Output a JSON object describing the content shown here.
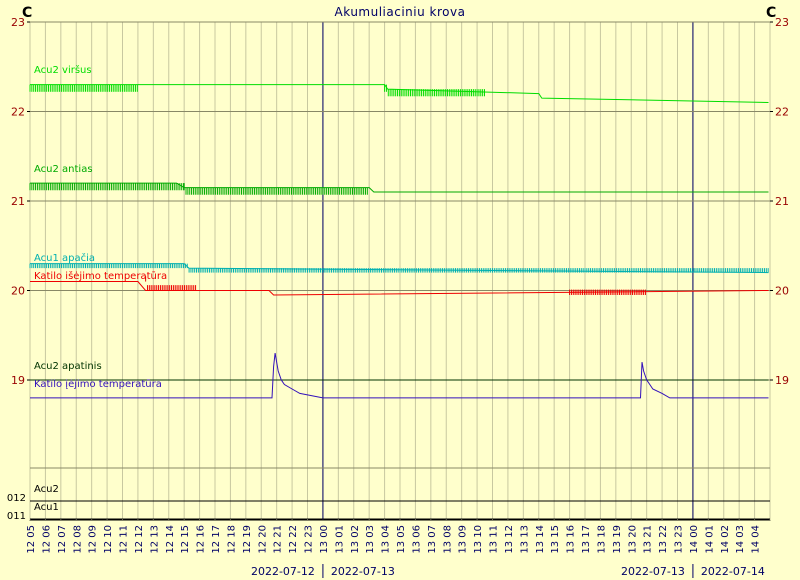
{
  "chart_data": {
    "type": "line",
    "title": "Akumuliaciniu krova",
    "y_unit_left": "C",
    "y_unit_right": "C",
    "ylim": [
      18.2,
      23
    ],
    "y_ticks": [
      "23",
      "22",
      "21",
      "20",
      "19"
    ],
    "grid": true,
    "x_start_hour": 5,
    "x_hours": 48,
    "x_labels": [
      "12 05",
      "12 06",
      "12 07",
      "12 08",
      "12 09",
      "12 10",
      "12 11",
      "12 12",
      "12 13",
      "12 14",
      "12 15",
      "12 16",
      "12 17",
      "12 18",
      "12 19",
      "12 20",
      "12 21",
      "12 22",
      "12 23",
      "13 00",
      "13 01",
      "13 02",
      "13 03",
      "13 04",
      "13 05",
      "13 06",
      "13 07",
      "13 08",
      "13 09",
      "13 10",
      "13 11",
      "13 12",
      "13 13",
      "13 14",
      "13 15",
      "13 16",
      "13 17",
      "13 18",
      "13 19",
      "13 20",
      "13 21",
      "13 22",
      "13 23",
      "14 00",
      "14 01",
      "14 02",
      "14 03",
      "14 04"
    ],
    "date_captions": [
      "2022-07-12",
      "2022-07-13",
      "2022-07-13",
      "2022-07-14"
    ],
    "bottom_ticks": [
      "012",
      "011"
    ],
    "series": [
      {
        "name": "Acu2 viršus",
        "color": "#00dd00",
        "x": [
          0,
          7,
          7.2,
          23,
          23.2,
          33,
          33.2,
          47.9
        ],
        "y": [
          22.3,
          22.3,
          22.3,
          22.3,
          22.25,
          22.2,
          22.15,
          22.1
        ]
      },
      {
        "name": "Acu2 antias",
        "color": "#00aa00",
        "x": [
          0,
          9.5,
          10,
          22,
          22.3,
          47.9
        ],
        "y": [
          21.2,
          21.2,
          21.15,
          21.15,
          21.1,
          21.1
        ]
      },
      {
        "name": "Acu1 apačia",
        "color": "#00b0b0",
        "x": [
          0,
          10,
          10.3,
          47.9
        ],
        "y": [
          20.3,
          20.3,
          20.25,
          20.2
        ]
      },
      {
        "name": "Katilo išėjimo temperatūra",
        "color": "#ee0000",
        "x": [
          0,
          7,
          7.5,
          15.5,
          15.8,
          47.9
        ],
        "y": [
          20.1,
          20.1,
          20.0,
          20.0,
          19.95,
          20.0
        ]
      },
      {
        "name": "Acu2 apatinis",
        "color": "#003300",
        "x": [
          0,
          47.9
        ],
        "y": [
          19.0,
          19.0
        ]
      },
      {
        "name": "Katilo įėjimo temperatūra",
        "color": "#3311bb",
        "x": [
          0,
          15.7,
          15.8,
          15.9,
          16.1,
          16.3,
          16.5,
          17,
          17.5,
          19,
          39.6,
          39.7,
          39.8,
          40,
          40.2,
          40.4,
          41,
          41.5,
          47.9
        ],
        "y": [
          18.8,
          18.8,
          19.15,
          19.3,
          19.1,
          19.0,
          18.95,
          18.9,
          18.85,
          18.8,
          18.8,
          19.2,
          19.1,
          19.0,
          18.95,
          18.9,
          18.85,
          18.8,
          18.8
        ]
      }
    ],
    "bottom_series": [
      {
        "name": "Acu2",
        "color": "#000000"
      },
      {
        "name": "Acu1",
        "color": "#000000"
      }
    ]
  }
}
